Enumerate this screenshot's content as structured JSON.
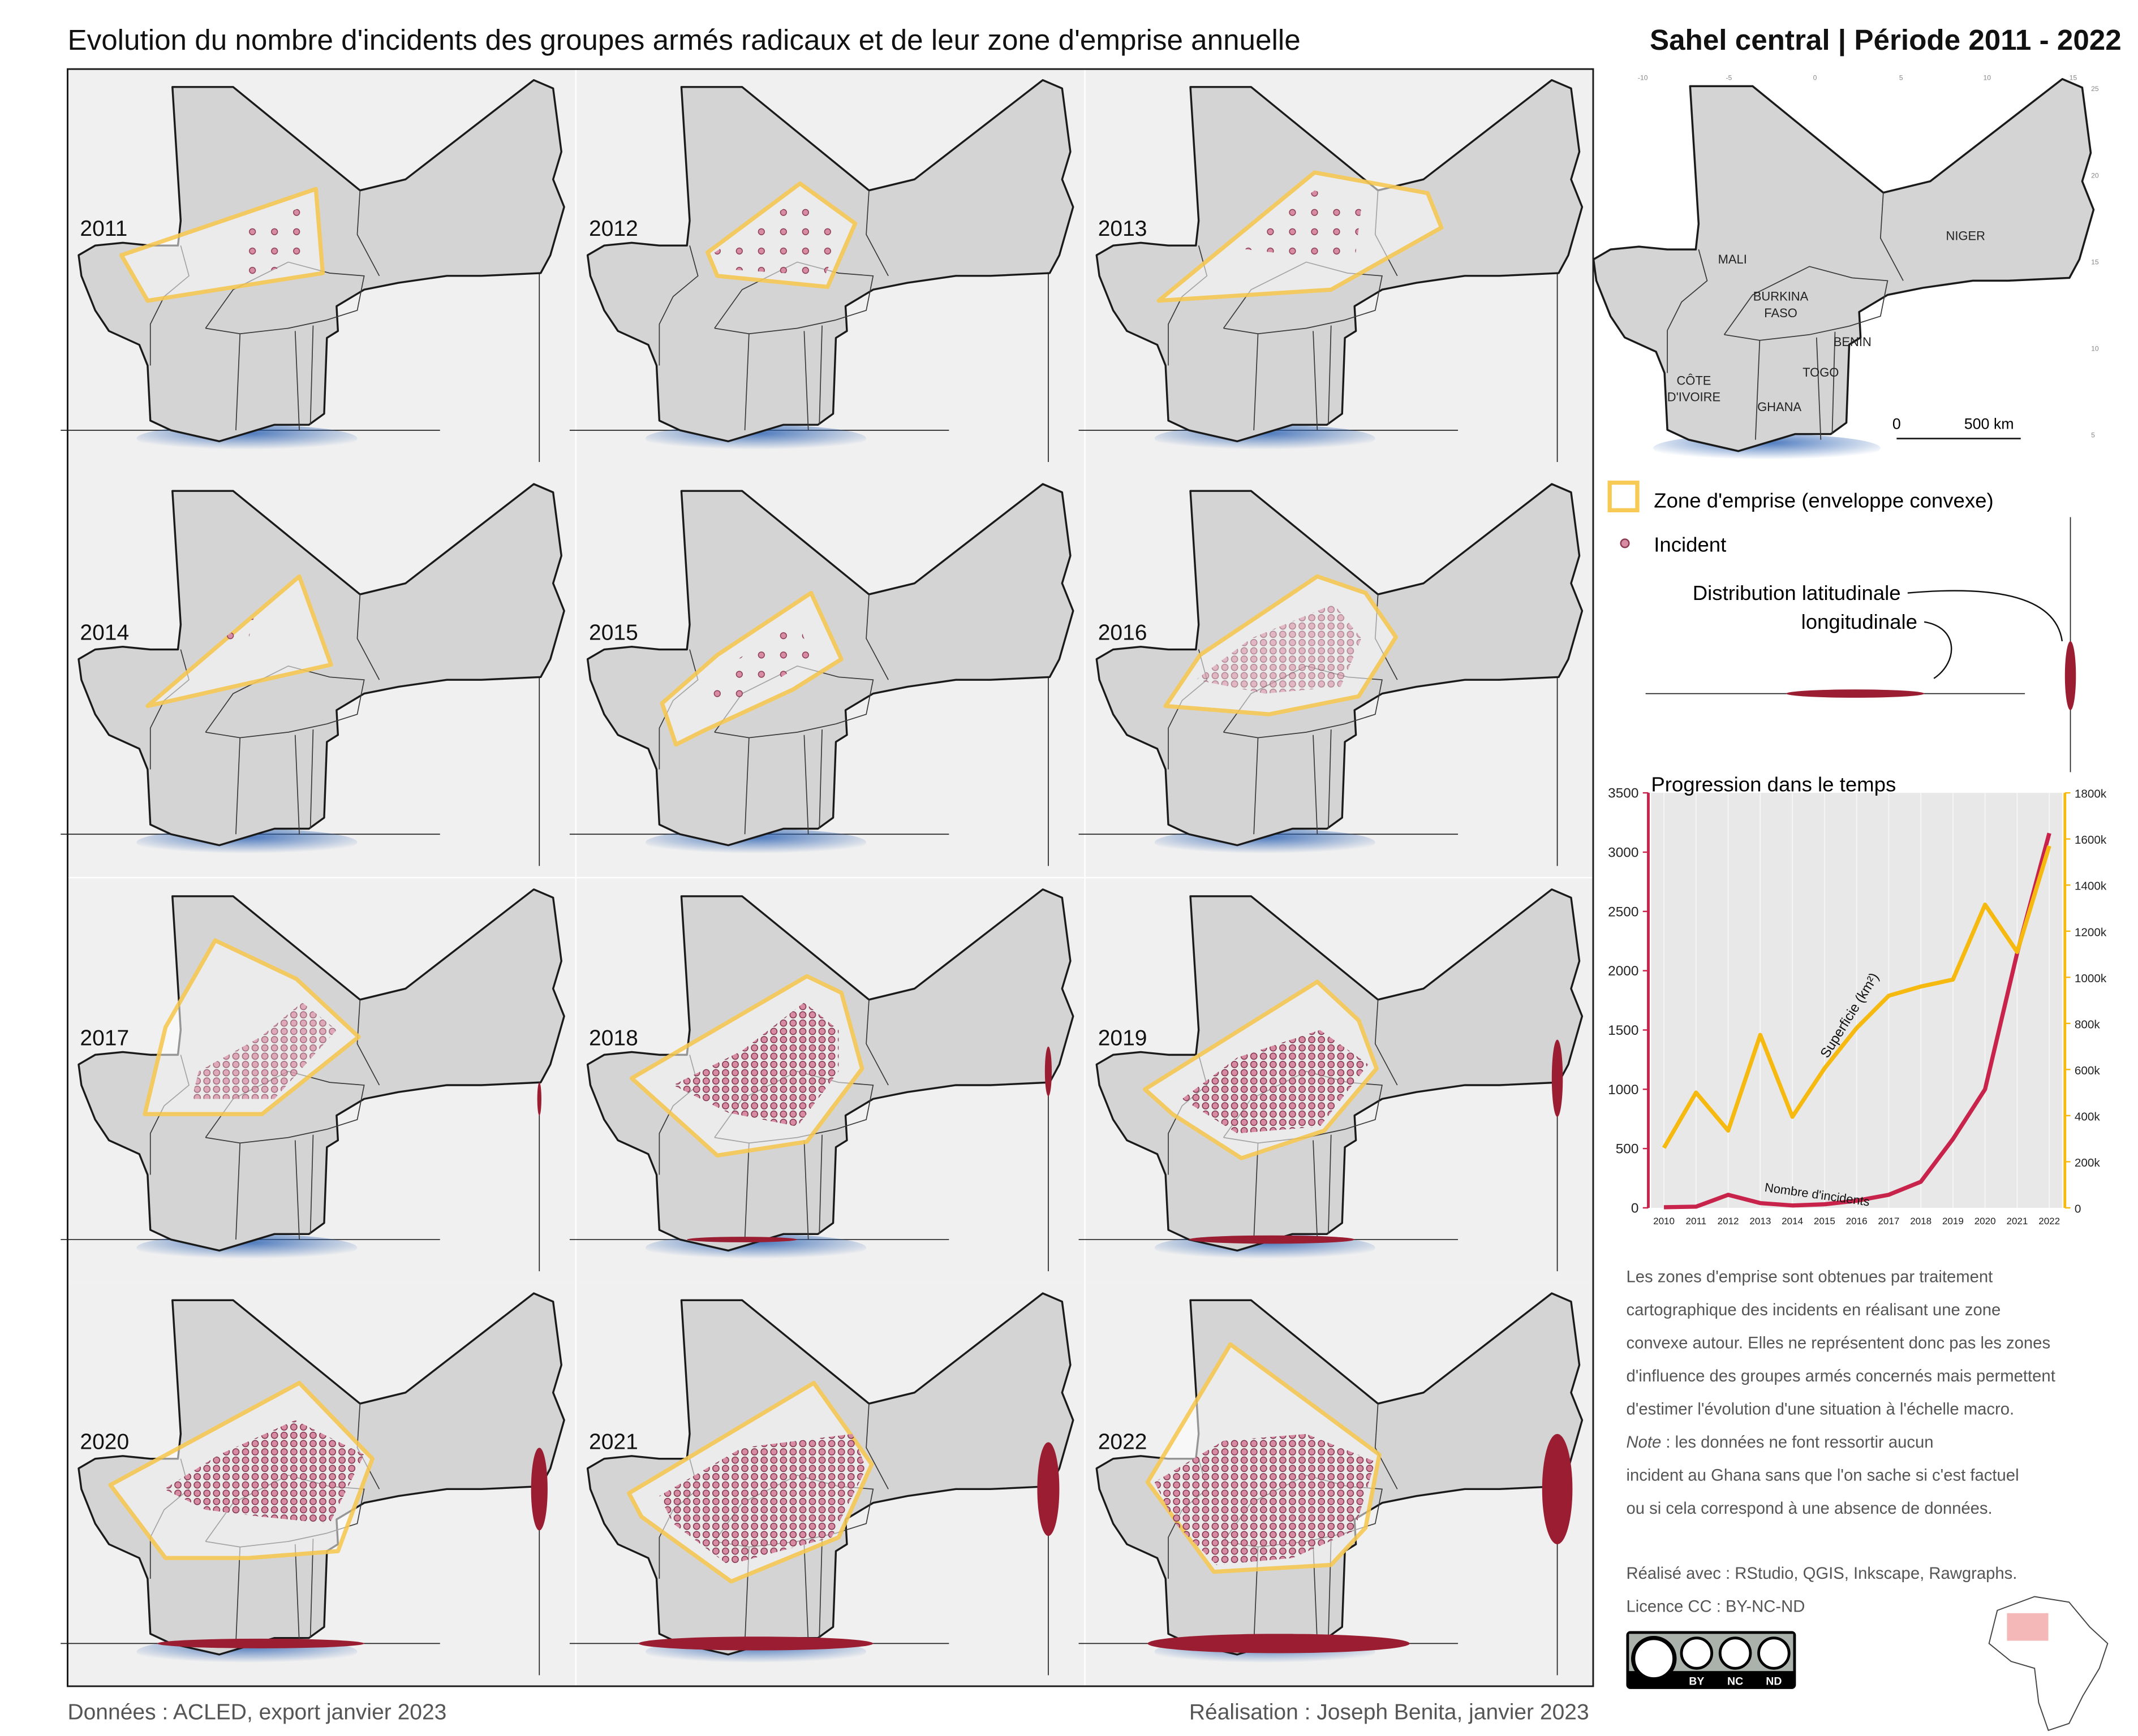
{
  "header": {
    "title": "Evolution du nombre d'incidents des groupes armés radicaux et de leur zone d'emprise annuelle",
    "subtitle": "Sahel central | Période 2011 - 2022"
  },
  "panels": [
    {
      "year": "2011"
    },
    {
      "year": "2012"
    },
    {
      "year": "2013"
    },
    {
      "year": "2014"
    },
    {
      "year": "2015"
    },
    {
      "year": "2016"
    },
    {
      "year": "2017"
    },
    {
      "year": "2018"
    },
    {
      "year": "2019"
    },
    {
      "year": "2020"
    },
    {
      "year": "2021"
    },
    {
      "year": "2022"
    }
  ],
  "overview_map": {
    "countries": [
      {
        "lines": [
          "MALI"
        ]
      },
      {
        "lines": [
          "NIGER"
        ]
      },
      {
        "lines": [
          "BURKINA",
          "FASO"
        ]
      },
      {
        "lines": [
          "BENIN"
        ]
      },
      {
        "lines": [
          "TOGO"
        ]
      },
      {
        "lines": [
          "CÔTE",
          "D'IVOIRE"
        ]
      },
      {
        "lines": [
          "GHANA"
        ]
      }
    ],
    "graticule": {
      "lon": [
        "-10",
        "-5",
        "0",
        "5",
        "10",
        "15"
      ],
      "lat": [
        "25",
        "20",
        "15",
        "10",
        "5"
      ]
    },
    "scale": {
      "start": "0",
      "end": "500 km"
    }
  },
  "legend": {
    "hull": "Zone d'emprise (enveloppe convexe)",
    "incident": "Incident",
    "distribution": "Distribution latitudinale",
    "distribution_long": "longitudinale"
  },
  "chart_data": {
    "type": "line",
    "title": "Progression dans le temps",
    "x": [
      2010,
      2011,
      2012,
      2013,
      2014,
      2015,
      2016,
      2017,
      2018,
      2019,
      2020,
      2021,
      2022
    ],
    "xlim": [
      2009.6,
      2022.4
    ],
    "xticks": [
      2010,
      2011,
      2012,
      2013,
      2014,
      2015,
      2016,
      2017,
      2018,
      2019,
      2020,
      2021,
      2022
    ],
    "ylim": [
      0,
      3500
    ],
    "yticks": [
      0,
      500,
      1000,
      1500,
      2000,
      2500,
      3000,
      3500
    ],
    "y2lim": [
      0,
      1800000
    ],
    "y2ticks": [
      0,
      {
        "value": 200000,
        "label": "200k"
      },
      {
        "value": 400000,
        "label": "400k"
      },
      {
        "value": 600000,
        "label": "600k"
      },
      {
        "value": 800000,
        "label": "800k"
      },
      {
        "value": 1000000,
        "label": "1000k"
      },
      {
        "value": 1200000,
        "label": "1200k"
      },
      {
        "value": 1400000,
        "label": "1400k"
      },
      {
        "value": 1600000,
        "label": "1600k"
      },
      {
        "value": 1800000,
        "label": "1800k"
      }
    ],
    "grid": true,
    "series": [
      {
        "name": "Nombre d'incidents",
        "color": "#c8234a",
        "values": [
          5,
          10,
          110,
          40,
          20,
          30,
          60,
          110,
          220,
          580,
          1000,
          2150,
          3160
        ]
      },
      {
        "name": "Superficie (km²)",
        "color": "#f5b90f",
        "axis": "y2",
        "values": [
          260000,
          500000,
          335000,
          750000,
          395000,
          605000,
          780000,
          920000,
          960000,
          990000,
          1315000,
          1110000,
          1570000
        ]
      }
    ]
  },
  "notes": {
    "lines": [
      "Les zones d'emprise sont obtenues par traitement",
      "cartographique des incidents en réalisant une zone",
      "convexe autour. Elles ne représentent donc pas les zones",
      "d'influence des groupes armés concernés mais permettent",
      "d'estimer l'évolution d'une situation à l'échelle macro.",
      "incident au Ghana sans que l'on sache si c'est factuel",
      "ou si cela correspond à une absence de données."
    ],
    "note_label": "Note",
    "note_rest": " : les données ne font ressortir aucun",
    "tools": "Réalisé avec : RStudio, QGIS, Inkscape, Rawgraphs.",
    "licence": "Licence CC : BY-NC-ND",
    "badge": [
      "BY",
      "NC",
      "ND"
    ]
  },
  "footer": {
    "source": "Données : ACLED, export janvier 2023",
    "author": "Réalisation : Joseph Benita, janvier 2023"
  }
}
